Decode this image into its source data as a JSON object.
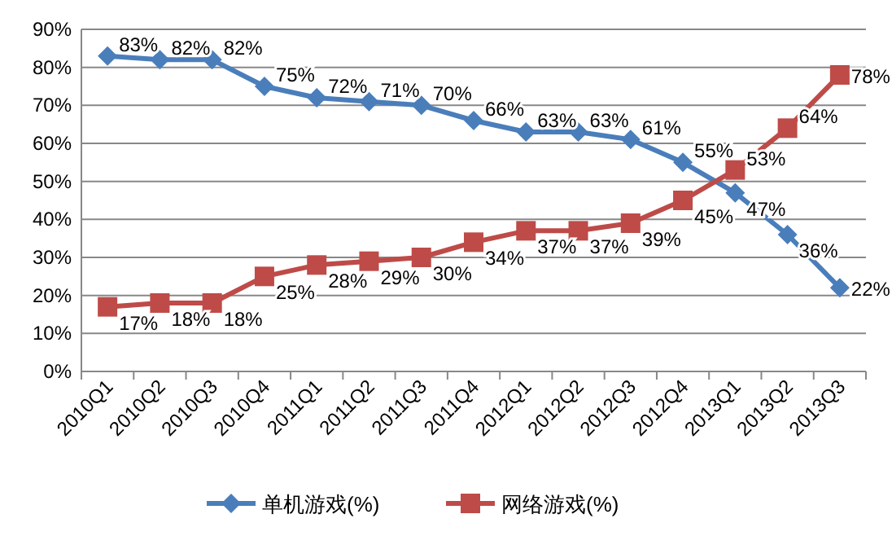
{
  "chart_data": {
    "type": "line",
    "categories": [
      "2010Q1",
      "2010Q2",
      "2010Q3",
      "2010Q4",
      "2011Q1",
      "2011Q2",
      "2011Q3",
      "2011Q4",
      "2012Q1",
      "2012Q2",
      "2012Q3",
      "2012Q4",
      "2013Q1",
      "2013Q2",
      "2013Q3"
    ],
    "series": [
      {
        "name": "单机游戏(%)",
        "color": "#4a7ebb",
        "marker": "diamond",
        "values": [
          83,
          82,
          82,
          75,
          72,
          71,
          70,
          66,
          63,
          63,
          61,
          55,
          47,
          36,
          22
        ],
        "value_labels": [
          "83%",
          "82%",
          "82%",
          "75%",
          "72%",
          "71%",
          "70%",
          "66%",
          "63%",
          "63%",
          "61%",
          "55%",
          "47%",
          "36%",
          "22%"
        ]
      },
      {
        "name": "网络游戏(%)",
        "color": "#be4b48",
        "marker": "square",
        "values": [
          17,
          18,
          18,
          25,
          28,
          29,
          30,
          34,
          37,
          37,
          39,
          45,
          53,
          64,
          78
        ],
        "value_labels": [
          "17%",
          "18%",
          "18%",
          "25%",
          "28%",
          "29%",
          "30%",
          "34%",
          "37%",
          "37%",
          "39%",
          "45%",
          "53%",
          "64%",
          "78%"
        ]
      }
    ],
    "ylim": [
      0,
      90
    ],
    "yticks": [
      {
        "value": 0,
        "label": "0%"
      },
      {
        "value": 10,
        "label": "10%"
      },
      {
        "value": 20,
        "label": "20%"
      },
      {
        "value": 30,
        "label": "30%"
      },
      {
        "value": 40,
        "label": "40%"
      },
      {
        "value": 50,
        "label": "50%"
      },
      {
        "value": 60,
        "label": "60%"
      },
      {
        "value": 70,
        "label": "70%"
      },
      {
        "value": 80,
        "label": "80%"
      },
      {
        "value": 90,
        "label": "90%"
      }
    ],
    "grid": "y",
    "legend": "bottom",
    "line_style": "solid"
  }
}
